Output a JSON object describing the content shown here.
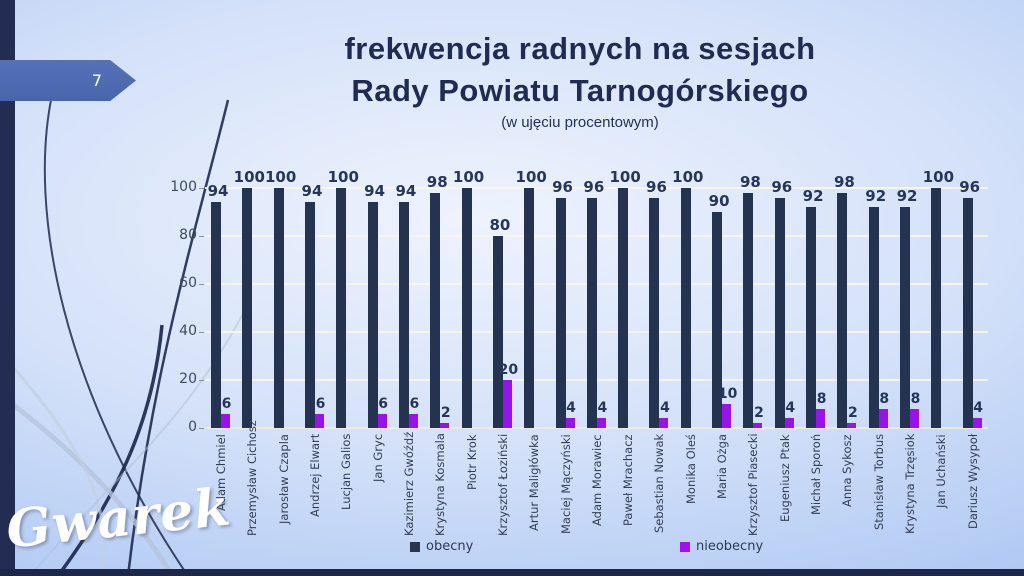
{
  "slide": {
    "number": "7",
    "title_line1": "frekwencja radnych na sesjach",
    "title_line2": "Rady Powiatu Tarnogórskiego",
    "subtitle": "(w ujęciu procentowym)",
    "logo_text": "Gwarek"
  },
  "colors": {
    "present_bar": "#243450",
    "absent_bar": "#9912ed",
    "arrow_accent": "#4d6cb3",
    "sidebar_navy": "#232c52",
    "title_text": "#1f2b52"
  },
  "chart_data": {
    "type": "bar",
    "title": "frekwencja radnych na sesjach Rady Powiatu Tarnogórskiego",
    "subtitle": "(w ujęciu procentowym)",
    "xlabel": "",
    "ylabel": "",
    "ylim": [
      0,
      100
    ],
    "yticks": [
      0,
      20,
      40,
      60,
      80,
      100
    ],
    "grid": true,
    "legend_position": "bottom",
    "categories": [
      "Adam Chmiel",
      "Przemysław Cichosz",
      "Jarosław Czapla",
      "Andrzej Elwart",
      "Lucjan Galios",
      "Jan Gryc",
      "Kazimierz Gwóźdź",
      "Krystyna Kosmala",
      "Piotr Krok",
      "Krzysztof Łoziński",
      "Artur Maligłówka",
      "Maciej Mączyński",
      "Adam Morawiec",
      "Paweł Mrachacz",
      "Sebastian Nowak",
      "Monika Oleś",
      "Maria Ożga",
      "Krzysztof Piasecki",
      "Eugeniusz Ptak",
      "Michał Sporoń",
      "Anna Sykosz",
      "Stanisław Torbus",
      "Krystyna Trzęsiok",
      "Jan Uchański",
      "Dariusz Wysypoł"
    ],
    "series": [
      {
        "name": "obecny",
        "color": "#243450",
        "values": [
          94,
          100,
          100,
          94,
          100,
          94,
          94,
          98,
          100,
          80,
          100,
          96,
          96,
          100,
          96,
          100,
          90,
          98,
          96,
          92,
          98,
          92,
          92,
          100,
          96
        ]
      },
      {
        "name": "nieobecny",
        "color": "#9912ed",
        "values": [
          6,
          0,
          0,
          6,
          0,
          6,
          6,
          2,
          0,
          20,
          0,
          4,
          4,
          0,
          4,
          0,
          10,
          2,
          4,
          8,
          2,
          8,
          8,
          0,
          4
        ]
      }
    ]
  }
}
